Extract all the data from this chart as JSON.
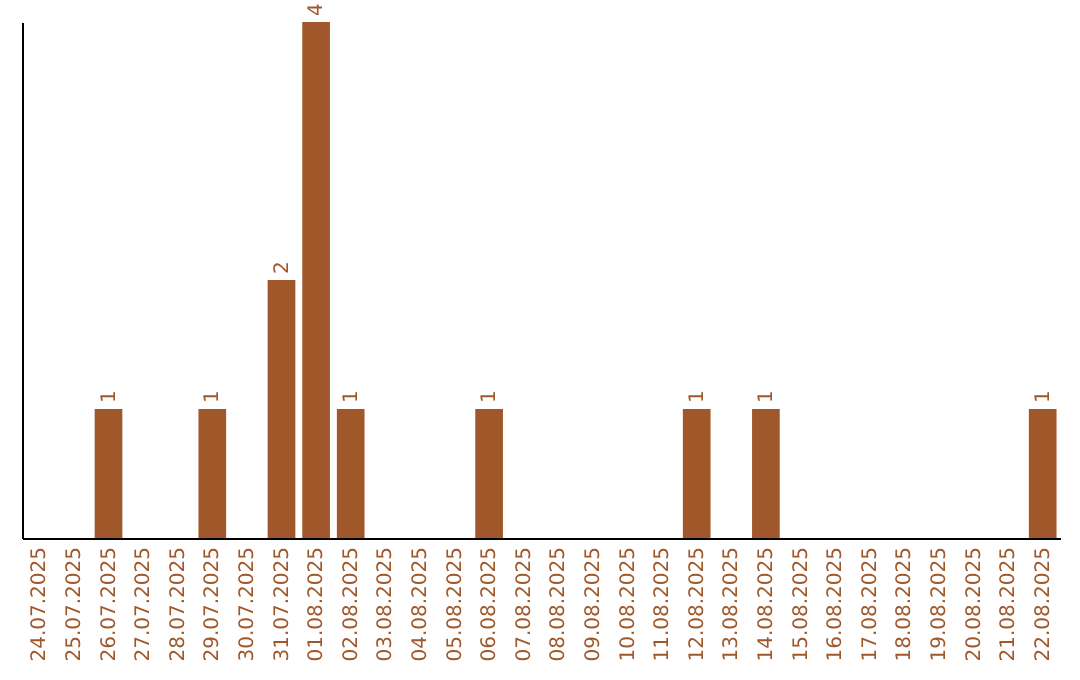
{
  "chart_data": {
    "type": "bar",
    "categories": [
      "24.07.2025",
      "25.07.2025",
      "26.07.2025",
      "27.07.2025",
      "28.07.2025",
      "29.07.2025",
      "30.07.2025",
      "31.07.2025",
      "01.08.2025",
      "02.08.2025",
      "03.08.2025",
      "04.08.2025",
      "05.08.2025",
      "06.08.2025",
      "07.08.2025",
      "08.08.2025",
      "09.08.2025",
      "10.08.2025",
      "11.08.2025",
      "12.08.2025",
      "13.08.2025",
      "14.08.2025",
      "15.08.2025",
      "16.08.2025",
      "17.08.2025",
      "18.08.2025",
      "19.08.2025",
      "20.08.2025",
      "21.08.2025",
      "22.08.2025"
    ],
    "values": [
      0,
      0,
      1,
      0,
      0,
      1,
      0,
      2,
      4,
      1,
      0,
      0,
      0,
      1,
      0,
      0,
      0,
      0,
      0,
      1,
      0,
      1,
      0,
      0,
      0,
      0,
      0,
      0,
      0,
      1
    ],
    "value_labels": [
      null,
      null,
      "1",
      null,
      null,
      "1",
      null,
      "2",
      "4",
      "1",
      null,
      null,
      null,
      "1",
      null,
      null,
      null,
      null,
      null,
      "1",
      null,
      "1",
      null,
      null,
      null,
      null,
      null,
      null,
      null,
      "1"
    ],
    "color": "#a0572a",
    "grid": false,
    "tick_labels": "x"
  }
}
